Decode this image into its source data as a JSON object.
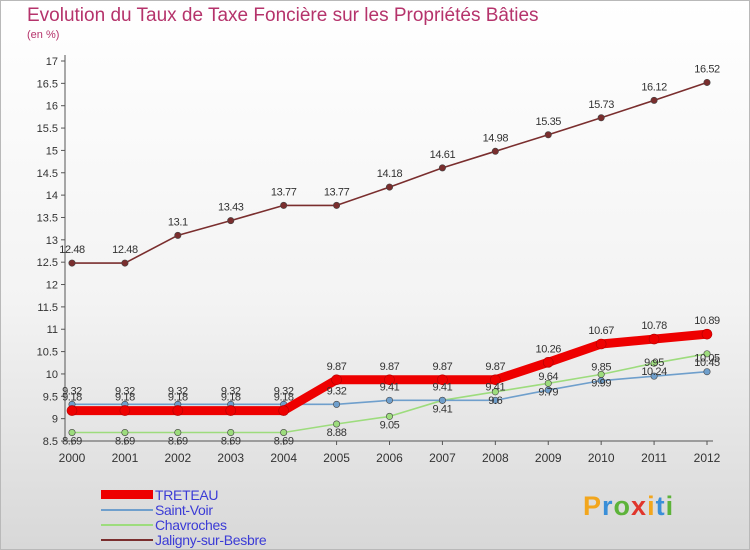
{
  "title": "Evolution du Taux de Taxe Foncière sur les Propriétés Bâties",
  "subtitle": "(en %)",
  "logo": {
    "letters": [
      "P",
      "r",
      "o",
      "x",
      "i",
      "t",
      "i"
    ],
    "colors": [
      "#f2a61d",
      "#3a8fd8",
      "#5db33a",
      "#e0362c",
      "#f2a61d",
      "#3a8fd8",
      "#5db33a"
    ]
  },
  "chart_data": {
    "type": "line",
    "title": "Evolution du Taux de Taxe Foncière sur les Propriétés Bâties",
    "ylabel": "(en %)",
    "x": [
      "2000",
      "2001",
      "2002",
      "2003",
      "2004",
      "2005",
      "2006",
      "2007",
      "2008",
      "2009",
      "2010",
      "2011",
      "2012"
    ],
    "ylim": [
      8.5,
      17
    ],
    "yticks": [
      "8.5",
      "9",
      "9.5",
      "10",
      "10.5",
      "11",
      "11.5",
      "12",
      "12.5",
      "13",
      "13.5",
      "14",
      "14.5",
      "15",
      "15.5",
      "16",
      "16.5",
      "17"
    ],
    "grid": false,
    "legend_position": "bottom-left",
    "series": [
      {
        "name": "TRETEAU",
        "color": "#ee0000",
        "values": [
          9.18,
          9.18,
          9.18,
          9.18,
          9.18,
          9.87,
          9.87,
          9.87,
          9.87,
          10.26,
          10.67,
          10.78,
          10.89
        ],
        "labels": [
          "9.18",
          "9.18",
          "9.18",
          "9.18",
          "9.18",
          "9.87",
          "9.87",
          "9.87",
          "9.87",
          "10.26",
          "10.67",
          "10.78",
          "10.89"
        ]
      },
      {
        "name": "Saint-Voir",
        "color": "#6f9fcc",
        "values": [
          9.32,
          9.32,
          9.32,
          9.32,
          9.32,
          9.32,
          9.41,
          9.41,
          9.41,
          9.64,
          9.85,
          9.95,
          10.05
        ],
        "labels": [
          "9.32",
          "9.32",
          "9.32",
          "9.32",
          "9.32",
          "9.32",
          "9.41",
          "9.41",
          "9.41",
          "9.64",
          "9.85",
          "9.95",
          "10.05"
        ]
      },
      {
        "name": "Chavroches",
        "color": "#9ddc7d",
        "values": [
          8.69,
          8.69,
          8.69,
          8.69,
          8.69,
          8.88,
          9.05,
          9.41,
          9.6,
          9.79,
          9.99,
          10.24,
          10.45
        ],
        "labels": [
          "8.69",
          "8.69",
          "8.69",
          "8.69",
          "8.69",
          "8.88",
          "9.05",
          "9.41",
          "9.6",
          "9.79",
          "9.99",
          "10.24",
          "10.45"
        ]
      },
      {
        "name": "Jaligny-sur-Besbre",
        "color": "#7a2e2e",
        "values": [
          12.48,
          12.48,
          13.1,
          13.43,
          13.77,
          13.77,
          14.18,
          14.61,
          14.98,
          15.35,
          15.73,
          16.12,
          16.52
        ],
        "labels": [
          "12.48",
          "12.48",
          "13.1",
          "13.43",
          "13.77",
          "13.77",
          "14.18",
          "14.61",
          "14.98",
          "15.35",
          "15.73",
          "16.12",
          "16.52"
        ]
      }
    ]
  }
}
